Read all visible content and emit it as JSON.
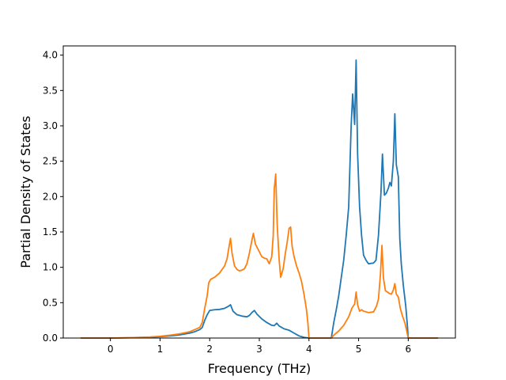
{
  "chart_data": {
    "type": "line",
    "title": "",
    "xlabel": "Frequency (THz)",
    "ylabel": "Partial Density of States",
    "xlim": [
      -0.95,
      6.95
    ],
    "ylim": [
      0.0,
      4.13
    ],
    "xticks": [
      0,
      1,
      2,
      3,
      4,
      5,
      6
    ],
    "xtick_labels": [
      "0",
      "1",
      "2",
      "3",
      "4",
      "5",
      "6"
    ],
    "yticks": [
      0.0,
      0.5,
      1.0,
      1.5,
      2.0,
      2.5,
      3.0,
      3.5,
      4.0
    ],
    "ytick_labels": [
      "0.0",
      "0.5",
      "1.0",
      "1.5",
      "2.0",
      "2.5",
      "3.0",
      "3.5",
      "4.0"
    ],
    "grid": false,
    "series": [
      {
        "color": "#1f77b4",
        "points": [
          [
            -0.6,
            0.0
          ],
          [
            0.0,
            0.0
          ],
          [
            0.4,
            0.004
          ],
          [
            0.8,
            0.012
          ],
          [
            1.0,
            0.02
          ],
          [
            1.2,
            0.03
          ],
          [
            1.4,
            0.045
          ],
          [
            1.6,
            0.07
          ],
          [
            1.7,
            0.09
          ],
          [
            1.8,
            0.12
          ],
          [
            1.85,
            0.15
          ],
          [
            1.9,
            0.25
          ],
          [
            1.95,
            0.33
          ],
          [
            2.0,
            0.39
          ],
          [
            2.1,
            0.4
          ],
          [
            2.2,
            0.405
          ],
          [
            2.3,
            0.42
          ],
          [
            2.38,
            0.45
          ],
          [
            2.42,
            0.47
          ],
          [
            2.47,
            0.38
          ],
          [
            2.55,
            0.33
          ],
          [
            2.65,
            0.31
          ],
          [
            2.75,
            0.3
          ],
          [
            2.8,
            0.32
          ],
          [
            2.85,
            0.36
          ],
          [
            2.9,
            0.39
          ],
          [
            2.95,
            0.34
          ],
          [
            3.05,
            0.27
          ],
          [
            3.15,
            0.22
          ],
          [
            3.25,
            0.18
          ],
          [
            3.3,
            0.175
          ],
          [
            3.35,
            0.21
          ],
          [
            3.4,
            0.17
          ],
          [
            3.5,
            0.13
          ],
          [
            3.6,
            0.11
          ],
          [
            3.7,
            0.07
          ],
          [
            3.8,
            0.03
          ],
          [
            3.9,
            0.01
          ],
          [
            4.0,
            0.0
          ],
          [
            4.2,
            0.0
          ],
          [
            4.45,
            0.0
          ],
          [
            4.5,
            0.22
          ],
          [
            4.55,
            0.4
          ],
          [
            4.6,
            0.6
          ],
          [
            4.65,
            0.85
          ],
          [
            4.7,
            1.1
          ],
          [
            4.75,
            1.45
          ],
          [
            4.8,
            1.85
          ],
          [
            4.85,
            3.0
          ],
          [
            4.88,
            3.45
          ],
          [
            4.92,
            3.02
          ],
          [
            4.95,
            3.93
          ],
          [
            4.98,
            2.6
          ],
          [
            5.02,
            1.85
          ],
          [
            5.06,
            1.45
          ],
          [
            5.1,
            1.17
          ],
          [
            5.15,
            1.1
          ],
          [
            5.2,
            1.05
          ],
          [
            5.3,
            1.06
          ],
          [
            5.35,
            1.1
          ],
          [
            5.4,
            1.45
          ],
          [
            5.45,
            2.05
          ],
          [
            5.48,
            2.6
          ],
          [
            5.52,
            2.02
          ],
          [
            5.56,
            2.05
          ],
          [
            5.6,
            2.12
          ],
          [
            5.63,
            2.2
          ],
          [
            5.66,
            2.15
          ],
          [
            5.7,
            2.5
          ],
          [
            5.73,
            3.17
          ],
          [
            5.76,
            2.45
          ],
          [
            5.8,
            2.28
          ],
          [
            5.83,
            1.4
          ],
          [
            5.86,
            1.05
          ],
          [
            5.9,
            0.75
          ],
          [
            5.95,
            0.45
          ],
          [
            5.98,
            0.2
          ],
          [
            6.0,
            0.0
          ],
          [
            6.6,
            0.0
          ]
        ]
      },
      {
        "color": "#ff7f0e",
        "points": [
          [
            -0.6,
            0.0
          ],
          [
            0.0,
            0.0
          ],
          [
            0.4,
            0.005
          ],
          [
            0.8,
            0.015
          ],
          [
            1.0,
            0.025
          ],
          [
            1.2,
            0.04
          ],
          [
            1.4,
            0.06
          ],
          [
            1.6,
            0.09
          ],
          [
            1.7,
            0.12
          ],
          [
            1.8,
            0.15
          ],
          [
            1.85,
            0.22
          ],
          [
            1.9,
            0.42
          ],
          [
            1.95,
            0.6
          ],
          [
            1.98,
            0.78
          ],
          [
            2.02,
            0.83
          ],
          [
            2.1,
            0.86
          ],
          [
            2.2,
            0.92
          ],
          [
            2.3,
            1.02
          ],
          [
            2.35,
            1.12
          ],
          [
            2.38,
            1.25
          ],
          [
            2.42,
            1.41
          ],
          [
            2.45,
            1.2
          ],
          [
            2.5,
            1.02
          ],
          [
            2.55,
            0.97
          ],
          [
            2.6,
            0.95
          ],
          [
            2.65,
            0.96
          ],
          [
            2.7,
            0.98
          ],
          [
            2.75,
            1.05
          ],
          [
            2.8,
            1.2
          ],
          [
            2.85,
            1.38
          ],
          [
            2.88,
            1.48
          ],
          [
            2.92,
            1.33
          ],
          [
            3.0,
            1.22
          ],
          [
            3.05,
            1.15
          ],
          [
            3.1,
            1.13
          ],
          [
            3.15,
            1.12
          ],
          [
            3.2,
            1.05
          ],
          [
            3.25,
            1.15
          ],
          [
            3.28,
            1.45
          ],
          [
            3.3,
            2.1
          ],
          [
            3.33,
            2.32
          ],
          [
            3.36,
            1.6
          ],
          [
            3.4,
            1.1
          ],
          [
            3.43,
            0.86
          ],
          [
            3.48,
            0.98
          ],
          [
            3.52,
            1.18
          ],
          [
            3.56,
            1.35
          ],
          [
            3.6,
            1.55
          ],
          [
            3.63,
            1.57
          ],
          [
            3.66,
            1.3
          ],
          [
            3.7,
            1.15
          ],
          [
            3.75,
            1.02
          ],
          [
            3.8,
            0.92
          ],
          [
            3.85,
            0.8
          ],
          [
            3.9,
            0.62
          ],
          [
            3.95,
            0.4
          ],
          [
            3.98,
            0.2
          ],
          [
            4.0,
            0.0
          ],
          [
            4.45,
            0.0
          ],
          [
            4.5,
            0.04
          ],
          [
            4.6,
            0.1
          ],
          [
            4.7,
            0.18
          ],
          [
            4.8,
            0.3
          ],
          [
            4.87,
            0.43
          ],
          [
            4.92,
            0.48
          ],
          [
            4.95,
            0.65
          ],
          [
            4.98,
            0.47
          ],
          [
            5.02,
            0.38
          ],
          [
            5.06,
            0.4
          ],
          [
            5.1,
            0.38
          ],
          [
            5.15,
            0.37
          ],
          [
            5.2,
            0.36
          ],
          [
            5.3,
            0.37
          ],
          [
            5.36,
            0.45
          ],
          [
            5.4,
            0.55
          ],
          [
            5.44,
            0.9
          ],
          [
            5.47,
            1.31
          ],
          [
            5.5,
            0.85
          ],
          [
            5.54,
            0.67
          ],
          [
            5.58,
            0.65
          ],
          [
            5.62,
            0.63
          ],
          [
            5.66,
            0.62
          ],
          [
            5.7,
            0.68
          ],
          [
            5.73,
            0.77
          ],
          [
            5.76,
            0.62
          ],
          [
            5.8,
            0.58
          ],
          [
            5.84,
            0.42
          ],
          [
            5.88,
            0.32
          ],
          [
            5.93,
            0.22
          ],
          [
            5.97,
            0.1
          ],
          [
            6.0,
            0.0
          ],
          [
            6.6,
            0.0
          ]
        ]
      }
    ]
  }
}
